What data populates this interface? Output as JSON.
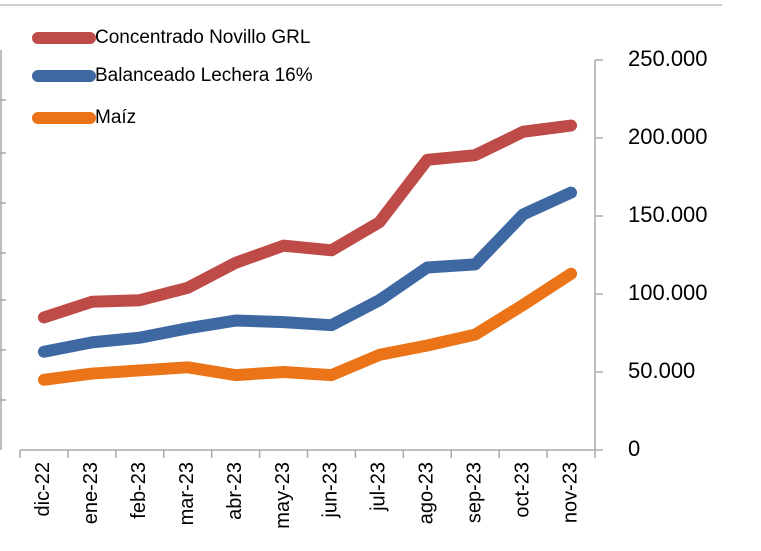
{
  "chart_data": {
    "type": "line",
    "categories": [
      "dic-22",
      "ene-23",
      "feb-23",
      "mar-23",
      "abr-23",
      "may-23",
      "jun-23",
      "jul-23",
      "ago-23",
      "sep-23",
      "oct-23",
      "nov-23"
    ],
    "series": [
      {
        "name": "Concentrado Novillo GRL",
        "color": "#be4b48",
        "values": [
          85000,
          95000,
          96000,
          104000,
          120000,
          131000,
          128000,
          146000,
          186000,
          189000,
          204000,
          208000
        ]
      },
      {
        "name": "Balanceado Lechera 16%",
        "color": "#3e68a2",
        "values": [
          63000,
          69000,
          72000,
          78000,
          83000,
          82000,
          80000,
          96000,
          117000,
          119000,
          151000,
          165000
        ]
      },
      {
        "name": "Maíz",
        "color": "#ea7417",
        "values": [
          45000,
          49000,
          51000,
          53000,
          48000,
          50000,
          48000,
          61000,
          67000,
          74000,
          93000,
          113000
        ]
      }
    ],
    "ylim": [
      0,
      250000
    ],
    "yticks": [
      0,
      {
        "value": 50000,
        "label": "50.000"
      },
      {
        "value": 100000,
        "label": "100.000"
      },
      {
        "value": 150000,
        "label": "150.000"
      },
      {
        "value": 200000,
        "label": "200.000"
      },
      {
        "value": 250000,
        "label": "250.000"
      }
    ],
    "yaxis_side": "right",
    "legend": "top-left",
    "grid": false
  }
}
